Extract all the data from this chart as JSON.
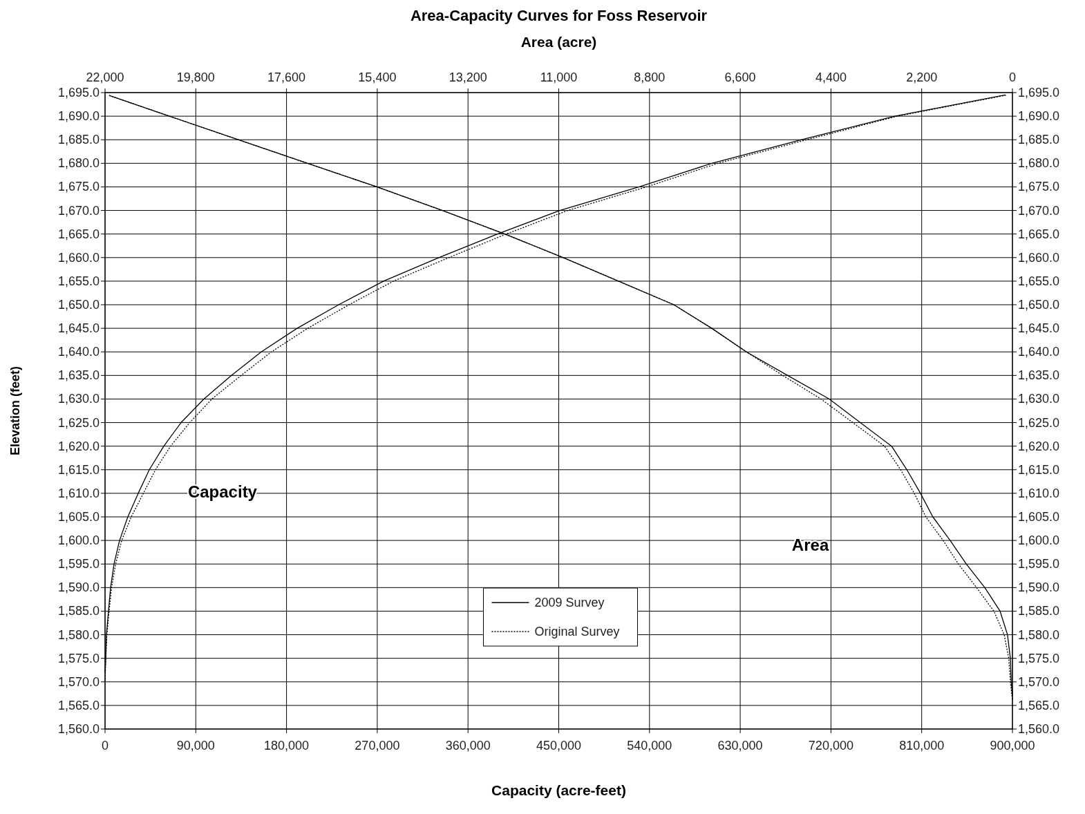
{
  "chart_data": {
    "type": "line",
    "title": "Area-Capacity Curves for Foss Reservoir",
    "xlabel": "Capacity (acre-feet)",
    "x2label": "Area (acre)",
    "ylabel": "Elevation (feet)",
    "xlim": [
      0,
      900000
    ],
    "xticks": [
      0,
      {
        "value": 90000,
        "label": "90,000"
      },
      {
        "value": 180000,
        "label": "180,000"
      },
      {
        "value": 270000,
        "label": "270,000"
      },
      {
        "value": 360000,
        "label": "360,000"
      },
      {
        "value": 450000,
        "label": "450,000"
      },
      {
        "value": 540000,
        "label": "540,000"
      },
      {
        "value": 630000,
        "label": "630,000"
      },
      {
        "value": 720000,
        "label": "720,000"
      },
      {
        "value": 810000,
        "label": "810,000"
      },
      {
        "value": 900000,
        "label": "900,000"
      }
    ],
    "x2lim": [
      22000,
      0
    ],
    "x2ticks": [
      {
        "value": 22000,
        "label": "22,000"
      },
      {
        "value": 19800,
        "label": "19,800"
      },
      {
        "value": 17600,
        "label": "17,600"
      },
      {
        "value": 15400,
        "label": "15,400"
      },
      {
        "value": 13200,
        "label": "13,200"
      },
      {
        "value": 11000,
        "label": "11,000"
      },
      {
        "value": 8800,
        "label": "8,800"
      },
      {
        "value": 6600,
        "label": "6,600"
      },
      {
        "value": 4400,
        "label": "4,400"
      },
      {
        "value": 2200,
        "label": "2,200"
      },
      0
    ],
    "ylim": [
      1560,
      1695
    ],
    "yticks": [
      {
        "value": 1560,
        "label": "1,560.0"
      },
      {
        "value": 1565,
        "label": "1,565.0"
      },
      {
        "value": 1570,
        "label": "1,570.0"
      },
      {
        "value": 1575,
        "label": "1,575.0"
      },
      {
        "value": 1580,
        "label": "1,580.0"
      },
      {
        "value": 1585,
        "label": "1,585.0"
      },
      {
        "value": 1590,
        "label": "1,590.0"
      },
      {
        "value": 1595,
        "label": "1,595.0"
      },
      {
        "value": 1600,
        "label": "1,600.0"
      },
      {
        "value": 1605,
        "label": "1,605.0"
      },
      {
        "value": 1610,
        "label": "1,610.0"
      },
      {
        "value": 1615,
        "label": "1,615.0"
      },
      {
        "value": 1620,
        "label": "1,620.0"
      },
      {
        "value": 1625,
        "label": "1,625.0"
      },
      {
        "value": 1630,
        "label": "1,630.0"
      },
      {
        "value": 1635,
        "label": "1,635.0"
      },
      {
        "value": 1640,
        "label": "1,640.0"
      },
      {
        "value": 1645,
        "label": "1,645.0"
      },
      {
        "value": 1650,
        "label": "1,650.0"
      },
      {
        "value": 1655,
        "label": "1,655.0"
      },
      {
        "value": 1660,
        "label": "1,660.0"
      },
      {
        "value": 1665,
        "label": "1,665.0"
      },
      {
        "value": 1670,
        "label": "1,670.0"
      },
      {
        "value": 1675,
        "label": "1,675.0"
      },
      {
        "value": 1680,
        "label": "1,680.0"
      },
      {
        "value": 1685,
        "label": "1,685.0"
      },
      {
        "value": 1690,
        "label": "1,690.0"
      },
      {
        "value": 1695,
        "label": "1,695.0"
      }
    ],
    "y2lim": [
      1560,
      1695
    ],
    "y2ticks": [
      {
        "value": 1560,
        "label": "1,560.0"
      },
      {
        "value": 1565,
        "label": "1,565.0"
      },
      {
        "value": 1570,
        "label": "1,570.0"
      },
      {
        "value": 1575,
        "label": "1,575.0"
      },
      {
        "value": 1580,
        "label": "1,580.0"
      },
      {
        "value": 1585,
        "label": "1,585.0"
      },
      {
        "value": 1590,
        "label": "1,590.0"
      },
      {
        "value": 1595,
        "label": "1,595.0"
      },
      {
        "value": 1600,
        "label": "1,600.0"
      },
      {
        "value": 1605,
        "label": "1,605.0"
      },
      {
        "value": 1610,
        "label": "1,610.0"
      },
      {
        "value": 1615,
        "label": "1,615.0"
      },
      {
        "value": 1620,
        "label": "1,620.0"
      },
      {
        "value": 1625,
        "label": "1,625.0"
      },
      {
        "value": 1630,
        "label": "1,630.0"
      },
      {
        "value": 1635,
        "label": "1,635.0"
      },
      {
        "value": 1640,
        "label": "1,640.0"
      },
      {
        "value": 1645,
        "label": "1,645.0"
      },
      {
        "value": 1650,
        "label": "1,650.0"
      },
      {
        "value": 1655,
        "label": "1,655.0"
      },
      {
        "value": 1660,
        "label": "1,660.0"
      },
      {
        "value": 1665,
        "label": "1,665.0"
      },
      {
        "value": 1670,
        "label": "1,670.0"
      },
      {
        "value": 1675,
        "label": "1,675.0"
      },
      {
        "value": 1680,
        "label": "1,680.0"
      },
      {
        "value": 1685,
        "label": "1,685.0"
      },
      {
        "value": 1690,
        "label": "1,690.0"
      },
      {
        "value": 1695,
        "label": "1,695.0"
      }
    ],
    "grid": true,
    "legend": "bottom",
    "marker": "none",
    "annotations": [
      "Capacity",
      "Area"
    ],
    "series": [
      {
        "name": "2009 Survey",
        "color": "#000000",
        "line_style": "solid",
        "x": [
          0,
          700,
          1400,
          3400,
          5500,
          8900,
          14400,
          22600,
          32900,
          43900,
          58300,
          75400,
          98000,
          125400,
          154900,
          190500,
          231700,
          276200,
          331000,
          389300,
          451000,
          529800,
          601800,
          690900,
          783400,
          893000
        ],
        "values": [
          1572,
          1575,
          1580,
          1585,
          1590,
          1595,
          1600,
          1605,
          1610,
          1615,
          1620,
          1625,
          1630,
          1635,
          1640,
          1645,
          1650,
          1655,
          1660,
          1665,
          1670,
          1675,
          1680,
          1685,
          1690,
          1694.5
        ]
      },
      {
        "name": "Original Survey",
        "color": "#000000",
        "line_style": "dotted",
        "x": [
          0,
          800,
          1800,
          4000,
          6500,
          10500,
          16500,
          26000,
          38000,
          50000,
          65000,
          84000,
          106000,
          135000,
          165000,
          201000,
          242000,
          286000,
          341000,
          398000,
          459000,
          537000,
          608000,
          696000,
          786000,
          895000
        ],
        "values": [
          1570,
          1575,
          1580,
          1585,
          1590,
          1595,
          1600,
          1605,
          1610,
          1615,
          1620,
          1625,
          1630,
          1635,
          1640,
          1645,
          1650,
          1655,
          1660,
          1665,
          1670,
          1675,
          1680,
          1685,
          1690,
          1694.5
        ]
      },
      {
        "color": "#000000",
        "line_style": "solid",
        "axis": "x2",
        "x": [
          21900,
          20440,
          18770,
          17090,
          15410,
          13820,
          12310,
          10890,
          9550,
          8210,
          7290,
          6450,
          5450,
          4440,
          3690,
          2930,
          2560,
          2230,
          1930,
          1510,
          1120,
          670,
          300,
          120,
          50,
          30,
          0
        ],
        "values": [
          1694.4,
          1690,
          1685,
          1680,
          1675,
          1670,
          1665,
          1660,
          1655,
          1650,
          1645,
          1640,
          1635,
          1630,
          1625,
          1620,
          1615,
          1610,
          1605,
          1600,
          1595,
          1590,
          1585,
          1580,
          1575,
          1570,
          1567
        ]
      },
      {
        "color": "#000000",
        "line_style": "dotted",
        "axis": "x2",
        "x": [
          21900,
          20440,
          18770,
          17090,
          15410,
          13820,
          12310,
          10890,
          9550,
          8210,
          7290,
          6450,
          5570,
          4640,
          3870,
          3100,
          2710,
          2380,
          2100,
          1680,
          1310,
          870,
          450,
          200,
          90,
          50,
          0
        ],
        "values": [
          1694.4,
          1690,
          1685,
          1680,
          1675,
          1670,
          1665,
          1660,
          1655,
          1650,
          1645,
          1640,
          1635,
          1630,
          1625,
          1620,
          1615,
          1610,
          1605,
          1600,
          1595,
          1590,
          1585,
          1580,
          1575,
          1570,
          1566
        ]
      }
    ]
  }
}
